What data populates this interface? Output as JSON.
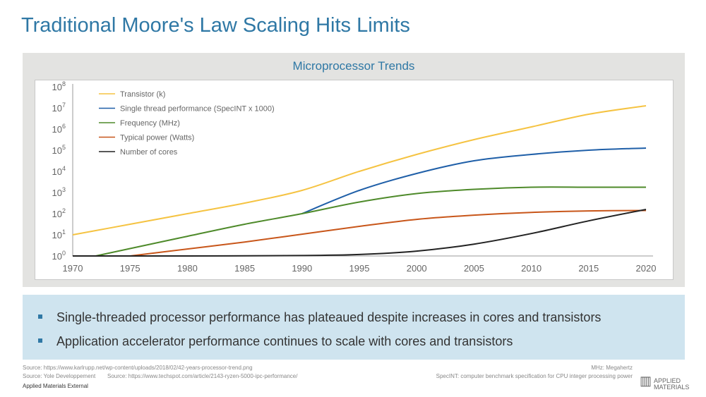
{
  "title": "Traditional Moore's Law Scaling Hits Limits",
  "chart_data": {
    "type": "line",
    "title": "Microprocessor Trends",
    "xlabel": "",
    "ylabel": "",
    "yscale": "log",
    "xlim": [
      1970,
      2020
    ],
    "ylim_log10": [
      0,
      8
    ],
    "xticks": [
      "1970",
      "1975",
      "1980",
      "1985",
      "1990",
      "1995",
      "2000",
      "2005",
      "2010",
      "2015",
      "2020"
    ],
    "yticks": [
      "0",
      "1",
      "2",
      "3",
      "4",
      "5",
      "6",
      "7",
      "8"
    ],
    "legend_position": "top-left",
    "series": [
      {
        "name": "Transistor (k)",
        "color": "#f5c342",
        "x": [
          1970,
          1975,
          1980,
          1985,
          1990,
          1995,
          2000,
          2005,
          2010,
          2015,
          2020
        ],
        "log10_values": [
          1.0,
          1.5,
          2.0,
          2.5,
          3.1,
          4.0,
          4.8,
          5.5,
          6.1,
          6.7,
          7.1
        ]
      },
      {
        "name": "Single thread performance (SpecINT x 1000)",
        "color": "#1f5fa8",
        "x": [
          1990,
          1995,
          2000,
          2005,
          2010,
          2015,
          2020
        ],
        "log10_values": [
          2.0,
          3.1,
          3.9,
          4.5,
          4.8,
          5.0,
          5.1
        ]
      },
      {
        "name": "Frequency (MHz)",
        "color": "#4e8a2a",
        "x": [
          1972,
          1975,
          1980,
          1985,
          1990,
          1995,
          2000,
          2005,
          2010,
          2015,
          2020
        ],
        "log10_values": [
          0,
          0.35,
          0.93,
          1.5,
          2.0,
          2.55,
          2.95,
          3.15,
          3.25,
          3.25,
          3.25
        ]
      },
      {
        "name": "Typical power (Watts)",
        "color": "#c8561a",
        "x": [
          1975,
          1980,
          1985,
          1990,
          1995,
          2000,
          2005,
          2010,
          2015,
          2020
        ],
        "log10_values": [
          0,
          0.33,
          0.66,
          1.03,
          1.4,
          1.73,
          1.93,
          2.06,
          2.13,
          2.15
        ]
      },
      {
        "name": "Number of cores",
        "color": "#222222",
        "x": [
          1970,
          1980,
          1990,
          1995,
          2000,
          2005,
          2010,
          2015,
          2020
        ],
        "log10_values": [
          0,
          0,
          0.02,
          0.07,
          0.23,
          0.56,
          1.06,
          1.66,
          2.2
        ]
      }
    ]
  },
  "bullets": [
    "Single-threaded processor performance has plateaued despite increases in cores and transistors",
    "Application accelerator performance continues to scale with cores and transistors"
  ],
  "footer": {
    "source1": "Source: https://www.karlrupp.net/wp-content/uploads/2018/02/42-years-processor-trend.png",
    "source2": "Source: Yole Developpement",
    "source3": "Source: https://www.techspot.com/article/2143-ryzen-5000-ipc-performance/",
    "note1": "MHz: Megahertz",
    "note2": "SpecINT:  computer benchmark specification for CPU integer processing power",
    "classification": "Applied Materials External",
    "logo": "APPLIED MATERIALS"
  }
}
